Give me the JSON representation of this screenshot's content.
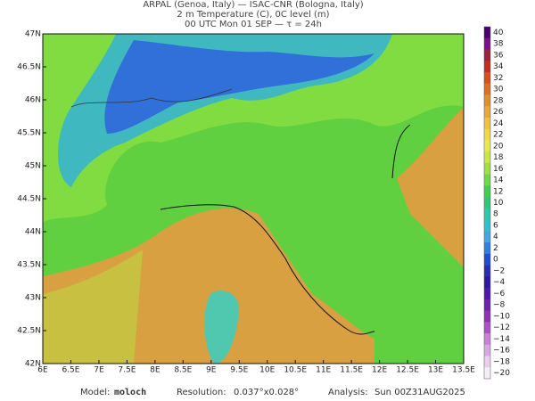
{
  "header": {
    "lines": [
      "ARPAL (Genoa, Italy)  —  ISAC-CNR (Bologna, Italy)",
      "2 m Temperature (C), 0C level (m)",
      "00 UTC Mon 01 SEP  —  τ = 24h"
    ]
  },
  "axes": {
    "lat": [
      "47N",
      "46.5N",
      "46N",
      "45.5N",
      "45N",
      "44.5N",
      "44N",
      "43.5N",
      "43N",
      "42.5N",
      "42N"
    ],
    "lon": [
      "6E",
      "6.5E",
      "7E",
      "7.5E",
      "8E",
      "8.5E",
      "9E",
      "9.5E",
      "10E",
      "10.5E",
      "11E",
      "11.5E",
      "12E",
      "12.5E",
      "13E",
      "13.5E"
    ]
  },
  "colorbar": {
    "labels": [
      "40",
      "38",
      "36",
      "34",
      "32",
      "30",
      "28",
      "26",
      "24",
      "22",
      "20",
      "18",
      "16",
      "14",
      "12",
      "10",
      "8",
      "6",
      "4",
      "2",
      "0",
      "−2",
      "−4",
      "−6",
      "−8",
      "−10",
      "−12",
      "−14",
      "−16",
      "−18",
      "−20"
    ],
    "colors": [
      "#4b0070",
      "#7a1090",
      "#a02040",
      "#c03020",
      "#d85018",
      "#e07020",
      "#e0902a",
      "#e8a83a",
      "#f0c040",
      "#f0d848",
      "#e8e850",
      "#c8e848",
      "#a0e040",
      "#70d840",
      "#40d050",
      "#30c878",
      "#30c8a8",
      "#30c0d0",
      "#40a8e0",
      "#3080e0",
      "#2050d0",
      "#2830b0",
      "#3018a0",
      "#5018a8",
      "#7020b0",
      "#9030b8",
      "#b050c8",
      "#c880d8",
      "#d8a8e0",
      "#e8d0ec",
      "#f4eef6"
    ]
  },
  "footer": {
    "model_label": "Model:",
    "model": "moloch",
    "resolution_label": "Resolution:",
    "resolution": "0.037°x0.028°",
    "analysis_label": "Analysis:",
    "analysis": "Sun 00Z31AUG2025"
  }
}
